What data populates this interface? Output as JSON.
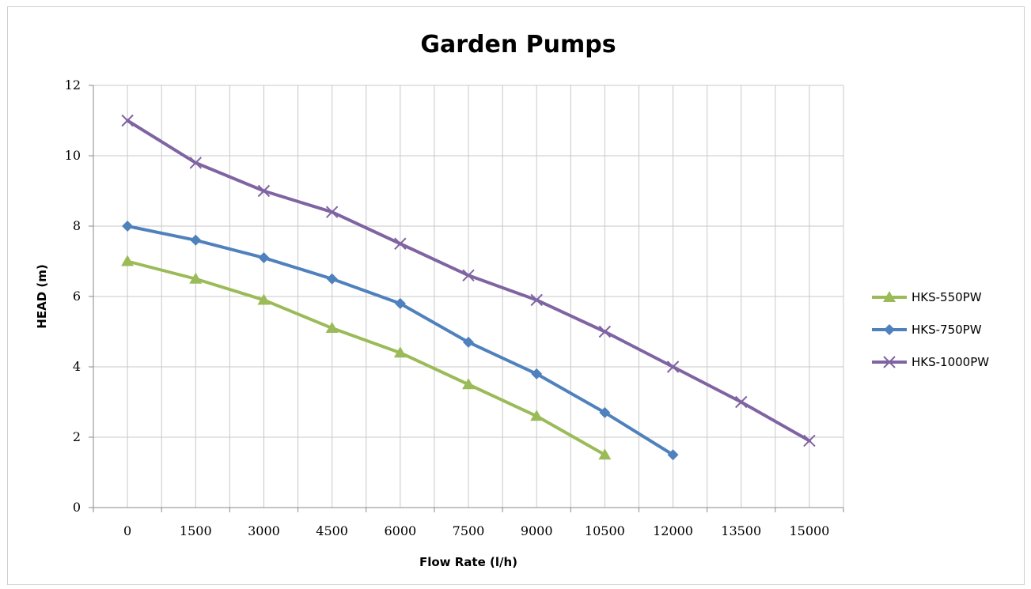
{
  "chart_data": {
    "type": "line",
    "title": "Garden Pumps",
    "xlabel": "Flow Rate (l/h)",
    "ylabel": "HEAD (m)",
    "categories": [
      "0",
      "1500",
      "3000",
      "4500",
      "6000",
      "7500",
      "9000",
      "10500",
      "12000",
      "13500",
      "15000"
    ],
    "ylim": [
      0,
      12
    ],
    "yticks": [
      0,
      2,
      4,
      6,
      8,
      10,
      12
    ],
    "grid": true,
    "legend_position": "right",
    "series": [
      {
        "name": "HKS-550PW",
        "color": "#9BBB59",
        "marker": "triangle",
        "values": [
          7.0,
          6.5,
          5.9,
          5.1,
          4.4,
          3.5,
          2.6,
          1.5,
          null,
          null,
          null
        ]
      },
      {
        "name": "HKS-750PW",
        "color": "#4F81BD",
        "marker": "diamond",
        "values": [
          8.0,
          7.6,
          7.1,
          6.5,
          5.8,
          4.7,
          3.8,
          2.7,
          1.5,
          null,
          null
        ]
      },
      {
        "name": "HKS-1000PW",
        "color": "#8064A2",
        "marker": "x",
        "values": [
          11.0,
          9.8,
          9.0,
          8.4,
          7.5,
          6.6,
          5.9,
          5.0,
          4.0,
          3.0,
          1.9
        ]
      }
    ]
  }
}
